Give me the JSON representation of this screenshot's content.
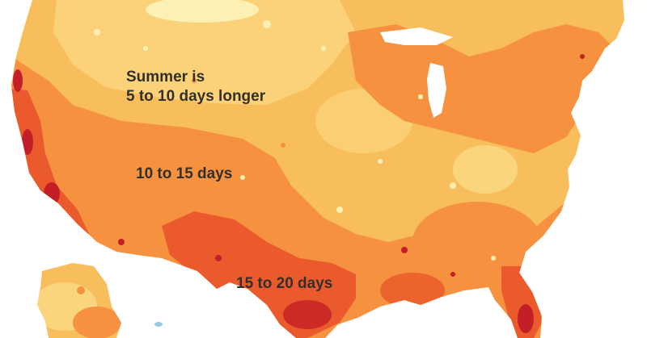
{
  "map": {
    "colors": {
      "background": "#ffffff",
      "base": "#f9be5c",
      "light": "#fbd57e",
      "lightest": "#fdf0b4",
      "mid": "#f5913f",
      "strong": "#ea5a2c",
      "darkest": "#c41e27",
      "water": "#9ac9e3",
      "label_text": "#33302a"
    },
    "labels": {
      "band_5_10_line1": "Summer is",
      "band_5_10_line2": "5 to 10 days longer",
      "band_10_15": "10 to 15 days",
      "band_15_20": "15 to 20 days"
    }
  }
}
